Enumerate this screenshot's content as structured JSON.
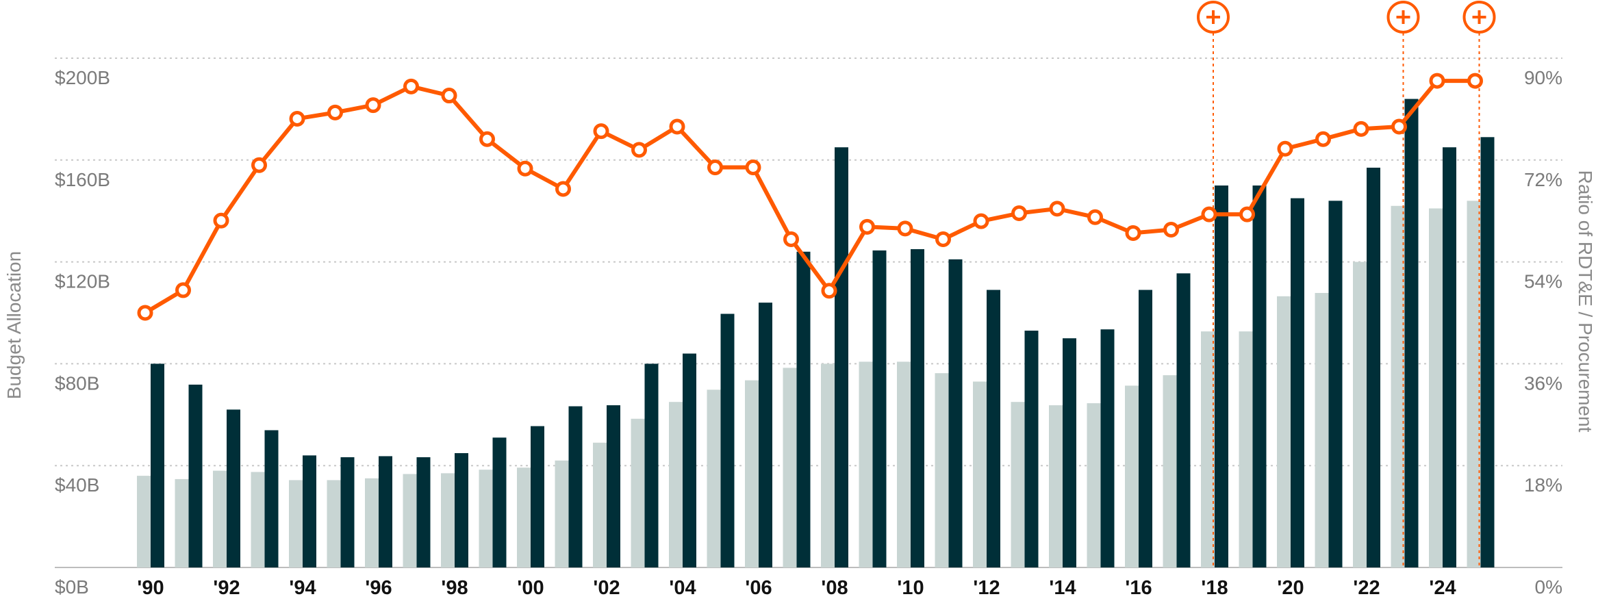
{
  "chart_data": {
    "type": "bar+line",
    "ylabel_left": "Budget Allocation",
    "ylabel_right": "Ratio of RDT&E / Procurement",
    "ylim_left": [
      0,
      200
    ],
    "ylim_right": [
      0,
      90
    ],
    "yticks_left": [
      "$0B",
      "$40B",
      "$80B",
      "$120B",
      "$160B",
      "$200B"
    ],
    "yticks_right": [
      "0%",
      "18%",
      "36%",
      "54%",
      "72%",
      "90%"
    ],
    "grid": true,
    "years": [
      1990,
      1991,
      1992,
      1993,
      1994,
      1995,
      1996,
      1997,
      1998,
      1999,
      2000,
      2001,
      2002,
      2003,
      2004,
      2005,
      2006,
      2007,
      2008,
      2009,
      2010,
      2011,
      2012,
      2013,
      2014,
      2015,
      2016,
      2017,
      2018,
      2019,
      2020,
      2021,
      2022,
      2023,
      2024,
      2025
    ],
    "xtick_labels": [
      "'90",
      "'92",
      "'94",
      "'96",
      "'98",
      "'00",
      "'02",
      "'04",
      "'06",
      "'08",
      "'10",
      "'12",
      "'14",
      "'16",
      "'18",
      "'20",
      "'22",
      "'24"
    ],
    "series": [
      {
        "type": "bar",
        "color": "#c8d5d3",
        "values": [
          36,
          34.7,
          38,
          37.5,
          34.3,
          34.3,
          35,
          36.7,
          37,
          38.4,
          39.2,
          42,
          49,
          58.4,
          65,
          69.8,
          73.5,
          78.4,
          80,
          80.8,
          80.8,
          76.3,
          73,
          65,
          63.7,
          64.5,
          71.4,
          75.5,
          92.7,
          92.7,
          106.5,
          107.8,
          120,
          142,
          141,
          144
        ]
      },
      {
        "type": "bar",
        "color": "#002f38",
        "values": [
          80,
          71.8,
          62,
          53.9,
          44,
          43.3,
          43.7,
          43.3,
          44.9,
          51,
          55.5,
          63.3,
          63.7,
          80,
          84,
          99.6,
          104,
          124,
          165,
          124.5,
          125,
          121,
          109,
          93,
          90,
          93.5,
          109,
          115.5,
          150,
          150,
          145,
          144,
          157,
          184,
          165,
          169
        ]
      },
      {
        "type": "line",
        "axis": "right",
        "color": "#ff5a00",
        "values": [
          45,
          49,
          61.3,
          71.1,
          79.3,
          80.4,
          81.7,
          85,
          83.4,
          75.7,
          70.5,
          66.9,
          77.1,
          73.8,
          77.9,
          70.7,
          70.7,
          58,
          48.9,
          60.2,
          59.9,
          58,
          61.2,
          62.6,
          63.4,
          61.9,
          59.1,
          59.7,
          62.4,
          62.4,
          74,
          75.7,
          77.5,
          77.9,
          86,
          86
        ]
      }
    ],
    "annotations": [
      {
        "year": 2018,
        "icon": "plus-circle-icon"
      },
      {
        "year": 2023,
        "icon": "plus-circle-icon"
      },
      {
        "year": 2025,
        "icon": "plus-circle-icon"
      }
    ]
  }
}
